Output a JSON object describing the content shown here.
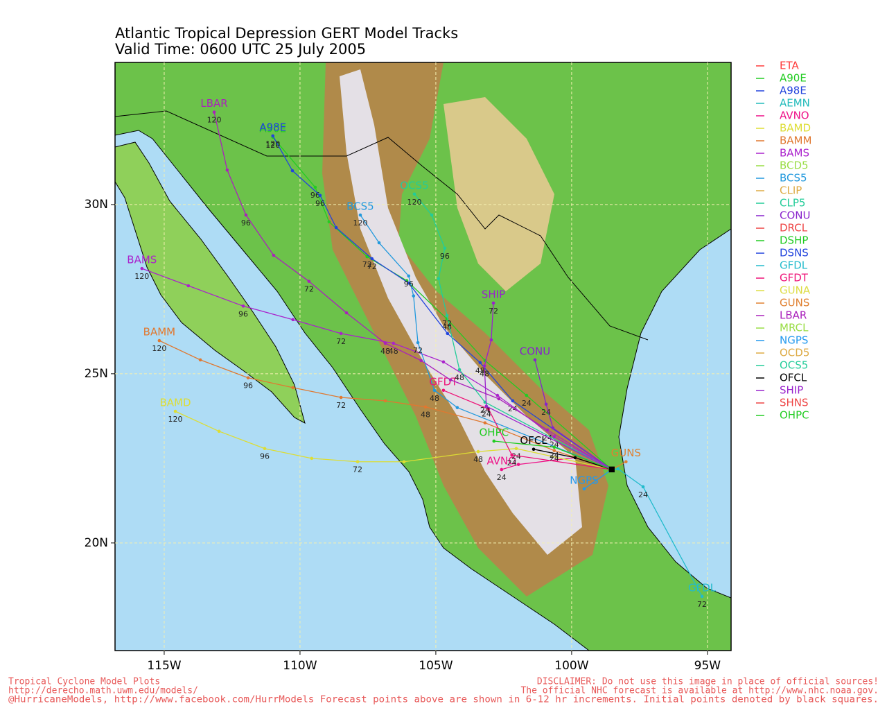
{
  "title": [
    "Atlantic Tropical Depression GERT Model Tracks",
    "Valid Time: 0600 UTC 25 July 2005"
  ],
  "map": {
    "xlim": [
      -116.81,
      -94.13
    ],
    "ylim": [
      16.82,
      34.2
    ],
    "xticks": [
      {
        "value": -115,
        "label": "115W"
      },
      {
        "value": -110,
        "label": "110W"
      },
      {
        "value": -105,
        "label": "105W"
      },
      {
        "value": -100,
        "label": "100W"
      },
      {
        "value": -95,
        "label": "95W"
      }
    ],
    "yticks": [
      {
        "value": 20,
        "label": "20N"
      },
      {
        "value": 25,
        "label": "25N"
      },
      {
        "value": 30,
        "label": "30N"
      }
    ],
    "grid": true
  },
  "models": [
    {
      "name": "ETA",
      "color": "#ff3a3a"
    },
    {
      "name": "A90E",
      "color": "#22cc22",
      "track": {
        "lon": [
          -111.0,
          -109.44,
          -108.93,
          -107.53,
          -106.07,
          -104.59,
          -103.19,
          -101.66,
          -98.52
        ],
        "lat": [
          31.99,
          30.51,
          29.49,
          28.46,
          27.75,
          26.62,
          25.39,
          24.36,
          22.17
        ],
        "hours": [
          120,
          96,
          null,
          72,
          null,
          48,
          null,
          24,
          null
        ]
      }
    },
    {
      "name": "A98E",
      "color": "#2244dd",
      "track": {
        "lon": [
          -111.0,
          -110.28,
          -109.26,
          -108.67,
          -107.35,
          -106.0,
          -104.57,
          -103.37,
          -102.17,
          -98.52
        ],
        "lat": [
          32.03,
          31.0,
          30.27,
          29.32,
          28.4,
          27.68,
          26.19,
          25.33,
          24.2,
          22.17
        ],
        "hours": [
          120,
          null,
          96,
          null,
          72,
          null,
          null,
          48,
          24,
          null
        ]
      }
    },
    {
      "name": "AEMN",
      "color": "#22bbbb"
    },
    {
      "name": "AVNO",
      "color": "#ee1188",
      "track": {
        "lon": [
          -102.58,
          -101.96,
          -99.87,
          -98.52
        ],
        "lat": [
          22.17,
          22.32,
          22.52,
          22.17
        ],
        "hours": [
          24,
          null,
          null,
          null
        ]
      }
    },
    {
      "name": "BAMD",
      "color": "#dddd33",
      "track": {
        "lon": [
          -114.59,
          -112.98,
          -111.3,
          -109.57,
          -107.88,
          -106.17,
          -103.44,
          -102.04,
          -98.52
        ],
        "lat": [
          23.89,
          23.3,
          22.79,
          22.5,
          22.4,
          22.4,
          22.7,
          22.79,
          22.17
        ],
        "hours": [
          120,
          null,
          96,
          null,
          72,
          null,
          48,
          24,
          null
        ]
      }
    },
    {
      "name": "BAMM",
      "color": "#e07830",
      "track": {
        "lon": [
          -115.18,
          -113.67,
          -111.91,
          -110.26,
          -108.49,
          -106.86,
          -105.38,
          -103.19,
          -100.64,
          -98.52
        ],
        "lat": [
          25.98,
          25.41,
          24.88,
          24.59,
          24.3,
          24.2,
          24.02,
          23.55,
          22.73,
          22.17
        ],
        "hours": [
          120,
          null,
          96,
          null,
          72,
          null,
          48,
          null,
          24,
          null
        ]
      }
    },
    {
      "name": "BAMS",
      "color": "#aa22cc",
      "track": {
        "lon": [
          -115.82,
          -114.11,
          -112.09,
          -110.26,
          -108.49,
          -106.56,
          -104.72,
          -102.73,
          -100.64,
          -98.52
        ],
        "lat": [
          28.11,
          27.6,
          27.0,
          26.6,
          26.19,
          25.9,
          25.35,
          24.36,
          23.14,
          22.17
        ],
        "hours": [
          120,
          null,
          96,
          null,
          72,
          48,
          null,
          null,
          24,
          null
        ]
      }
    },
    {
      "name": "BCD5",
      "color": "#99dd44"
    },
    {
      "name": "BCS5",
      "color": "#2299dd",
      "track": {
        "lon": [
          -107.78,
          -107.09,
          -106.0,
          -105.82,
          -105.66,
          -105.05,
          -104.21,
          -98.52
        ],
        "lat": [
          29.69,
          28.87,
          27.89,
          27.3,
          25.92,
          24.51,
          24.0,
          22.17
        ],
        "hours": [
          120,
          null,
          96,
          null,
          72,
          48,
          null,
          null
        ]
      }
    },
    {
      "name": "CLIP",
      "color": "#ddaa44"
    },
    {
      "name": "CLP5",
      "color": "#22cc99"
    },
    {
      "name": "CONU",
      "color": "#8822cc",
      "track": {
        "lon": [
          -101.35,
          -100.94,
          -100.69,
          -98.52
        ],
        "lat": [
          25.41,
          24.1,
          23.4,
          22.17
        ],
        "hours": [
          null,
          24,
          null,
          null
        ]
      }
    },
    {
      "name": "DRCL",
      "color": "#ee4444"
    },
    {
      "name": "DSHP",
      "color": "#22cc22"
    },
    {
      "name": "DSNS",
      "color": "#2244dd"
    },
    {
      "name": "GFDL",
      "color": "#22bbcc",
      "track": {
        "lon": [
          -95.2,
          -97.37,
          -98.29,
          -98.52
        ],
        "lat": [
          18.42,
          21.66,
          22.19,
          22.17
        ],
        "hours": [
          72,
          24,
          null,
          null
        ]
      }
    },
    {
      "name": "GFDT",
      "color": "#ee1177",
      "track": {
        "lon": [
          -104.72,
          -103.06,
          -102.2,
          -98.52
        ],
        "lat": [
          24.51,
          23.96,
          22.6,
          22.17
        ],
        "hours": [
          null,
          null,
          24,
          null
        ]
      }
    },
    {
      "name": "GUNA",
      "color": "#dddd44"
    },
    {
      "name": "GUNS",
      "color": "#e08030",
      "track": {
        "lon": [
          -98.0,
          -98.52
        ],
        "lat": [
          22.4,
          22.17
        ],
        "hours": [
          null,
          null
        ]
      }
    },
    {
      "name": "LBAR",
      "color": "#aa22bb",
      "track": {
        "lon": [
          -113.16,
          -112.68,
          -111.99,
          -110.97,
          -109.67,
          -108.29,
          -106.86,
          -105.54,
          -104.46,
          -102.68,
          -100.89,
          -98.52
        ],
        "lat": [
          32.73,
          31.02,
          29.69,
          28.5,
          27.73,
          26.8,
          25.9,
          25.39,
          24.82,
          24.26,
          23.34,
          22.17
        ],
        "hours": [
          120,
          null,
          96,
          null,
          72,
          null,
          48,
          null,
          null,
          null,
          24,
          null
        ]
      }
    },
    {
      "name": "MRCL",
      "color": "#99dd44"
    },
    {
      "name": "NGPS",
      "color": "#2299ee",
      "track": {
        "lon": [
          -99.54,
          -98.52
        ],
        "lat": [
          21.6,
          22.17
        ],
        "hours": [
          null,
          null
        ]
      }
    },
    {
      "name": "OCD5",
      "color": "#ddaa44"
    },
    {
      "name": "OCS5",
      "color": "#22cc99",
      "track": {
        "lon": [
          -105.79,
          -105.15,
          -104.67,
          -104.9,
          -104.59,
          -104.13,
          -103.19,
          -98.52
        ],
        "lat": [
          30.31,
          29.69,
          28.71,
          27.81,
          26.72,
          25.12,
          24.16,
          22.17
        ],
        "hours": [
          120,
          null,
          96,
          null,
          72,
          48,
          24,
          null
        ]
      }
    },
    {
      "name": "OFCL",
      "color": "#000000",
      "track": {
        "lon": [
          -101.4,
          -99.87,
          -98.52
        ],
        "lat": [
          22.77,
          22.52,
          22.17
        ],
        "hours": [
          null,
          null,
          null
        ]
      }
    },
    {
      "name": "SHIP",
      "color": "#9922cc",
      "track": {
        "lon": [
          -102.88,
          -102.96,
          -103.21,
          -103.14,
          -98.52
        ],
        "lat": [
          27.09,
          26.0,
          25.23,
          24.04,
          22.17
        ],
        "hours": [
          72,
          null,
          48,
          24,
          null
        ]
      }
    },
    {
      "name": "SHNS",
      "color": "#ee4444"
    },
    {
      "name": "OHPC",
      "color": "#22cc22",
      "track": {
        "lon": [
          -102.86,
          -100.64,
          -98.52
        ],
        "lat": [
          23.01,
          22.83,
          22.17
        ],
        "hours": [
          null,
          24,
          null
        ]
      }
    }
  ],
  "footer": {
    "left": [
      "Tropical Cyclone Model Plots",
      "http://derecho.math.uwm.edu/models/"
    ],
    "right": [
      "DISCLAIMER: Do not use this image in place of official sources!",
      "The official NHC forecast is available at http://www.nhc.noaa.gov."
    ],
    "bottom": "@HurricaneModels, http://www.facebook.com/HurrModels  Forecast points above are shown in 6-12 hr increments. Initial points denoted by black squares."
  }
}
